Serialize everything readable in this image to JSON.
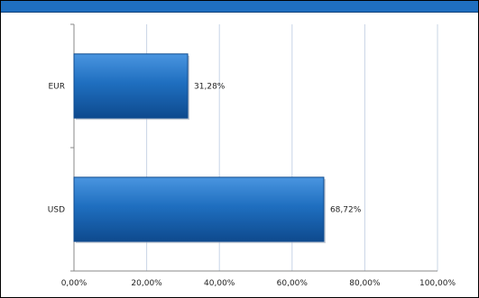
{
  "chart_data": {
    "type": "bar",
    "orientation": "horizontal",
    "categories": [
      "EUR",
      "USD"
    ],
    "values": [
      31.28,
      68.72
    ],
    "data_labels": [
      "31,28%",
      "68,72%"
    ],
    "x_ticks": [
      "0,00%",
      "20,00%",
      "40,00%",
      "60,00%",
      "80,00%",
      "100,00%"
    ],
    "xlim": [
      0,
      100
    ],
    "grid": "vertical",
    "legend": "none",
    "title": "",
    "xlabel": "",
    "ylabel": "",
    "colors": {
      "bar": "#1f6fc0",
      "bar_dark": "#0e4a8e",
      "grid": "#c8d4e6",
      "axis": "#888888",
      "header": "#1f6fc0"
    }
  }
}
